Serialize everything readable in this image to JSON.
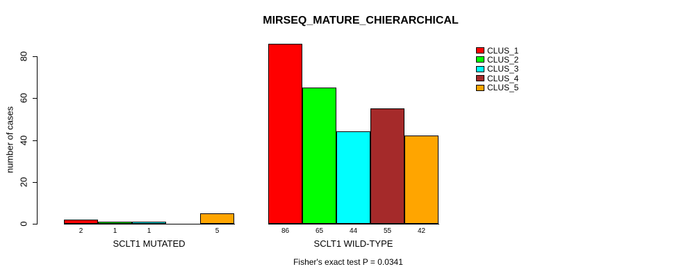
{
  "chart_data": {
    "type": "bar",
    "title": "MIRSEQ_MATURE_CHIERARCHICAL",
    "ylabel": "number of cases",
    "caption": "Fisher's exact test P = 0.0341",
    "ylim": [
      0,
      80
    ],
    "yticks": [
      0,
      20,
      40,
      60,
      80
    ],
    "grid": false,
    "legend_position": "top-right",
    "background_color": "#FFFFFF",
    "axis_color": "#000000",
    "legend": [
      {
        "label": "CLUS_1",
        "color": "#FF0000"
      },
      {
        "label": "CLUS_2",
        "color": "#00FF00"
      },
      {
        "label": "CLUS_3",
        "color": "#00FFFF"
      },
      {
        "label": "CLUS_4",
        "color": "#A52A2A"
      },
      {
        "label": "CLUS_5",
        "color": "#FFA500"
      }
    ],
    "groups": [
      {
        "label": "SCLT1 MUTATED",
        "values": [
          2,
          1,
          1,
          0,
          5
        ],
        "bar_labels": [
          "2",
          "1",
          "1",
          "",
          "5"
        ]
      },
      {
        "label": "SCLT1 WILD-TYPE",
        "values": [
          86,
          65,
          44,
          55,
          42
        ],
        "bar_labels": [
          "86",
          "65",
          "44",
          "55",
          "42"
        ]
      }
    ]
  }
}
